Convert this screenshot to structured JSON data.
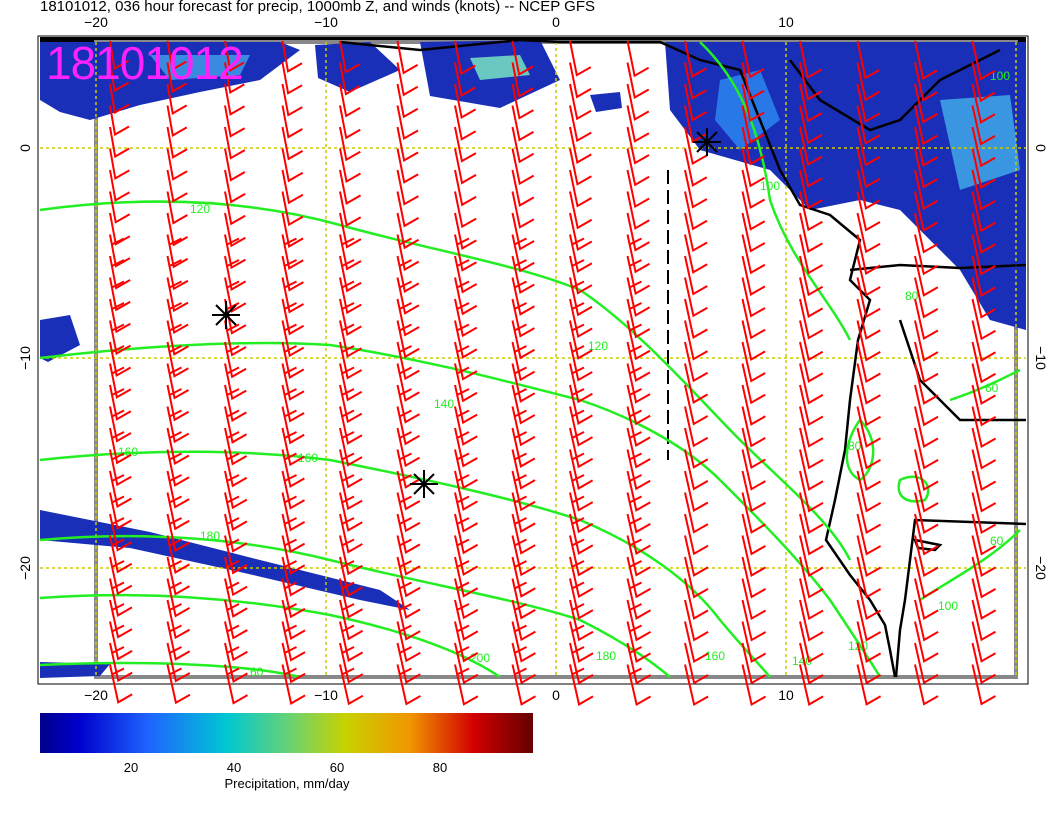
{
  "title": "18101012, 036 hour forecast for precip, 1000mb Z, and winds (knots) -- NCEP GFS",
  "stamp": "18101012",
  "axes": {
    "x_ticks": [
      "−20",
      "−10",
      "0",
      "10"
    ],
    "y_ticks": [
      "0",
      "−10",
      "−20"
    ]
  },
  "contour_labels": [
    "120",
    "120",
    "140",
    "160",
    "160",
    "180",
    "200",
    "180",
    "160",
    "140",
    "120",
    "100",
    "80",
    "60",
    "60",
    "100",
    "100",
    "80",
    "60"
  ],
  "colorbar": {
    "ticks": [
      "20",
      "40",
      "60",
      "80"
    ],
    "label": "Precipitation, mm/day"
  },
  "colors": {
    "wind_barb": "#ff0000",
    "contour": "#22ee22",
    "grid": "#cccc00",
    "stamp": "#ff22ff",
    "precip_low": "#00008b",
    "precip_high": "#640000"
  },
  "markers": [
    "low-pressure-center-1",
    "low-pressure-center-2",
    "low-pressure-center-3"
  ]
}
